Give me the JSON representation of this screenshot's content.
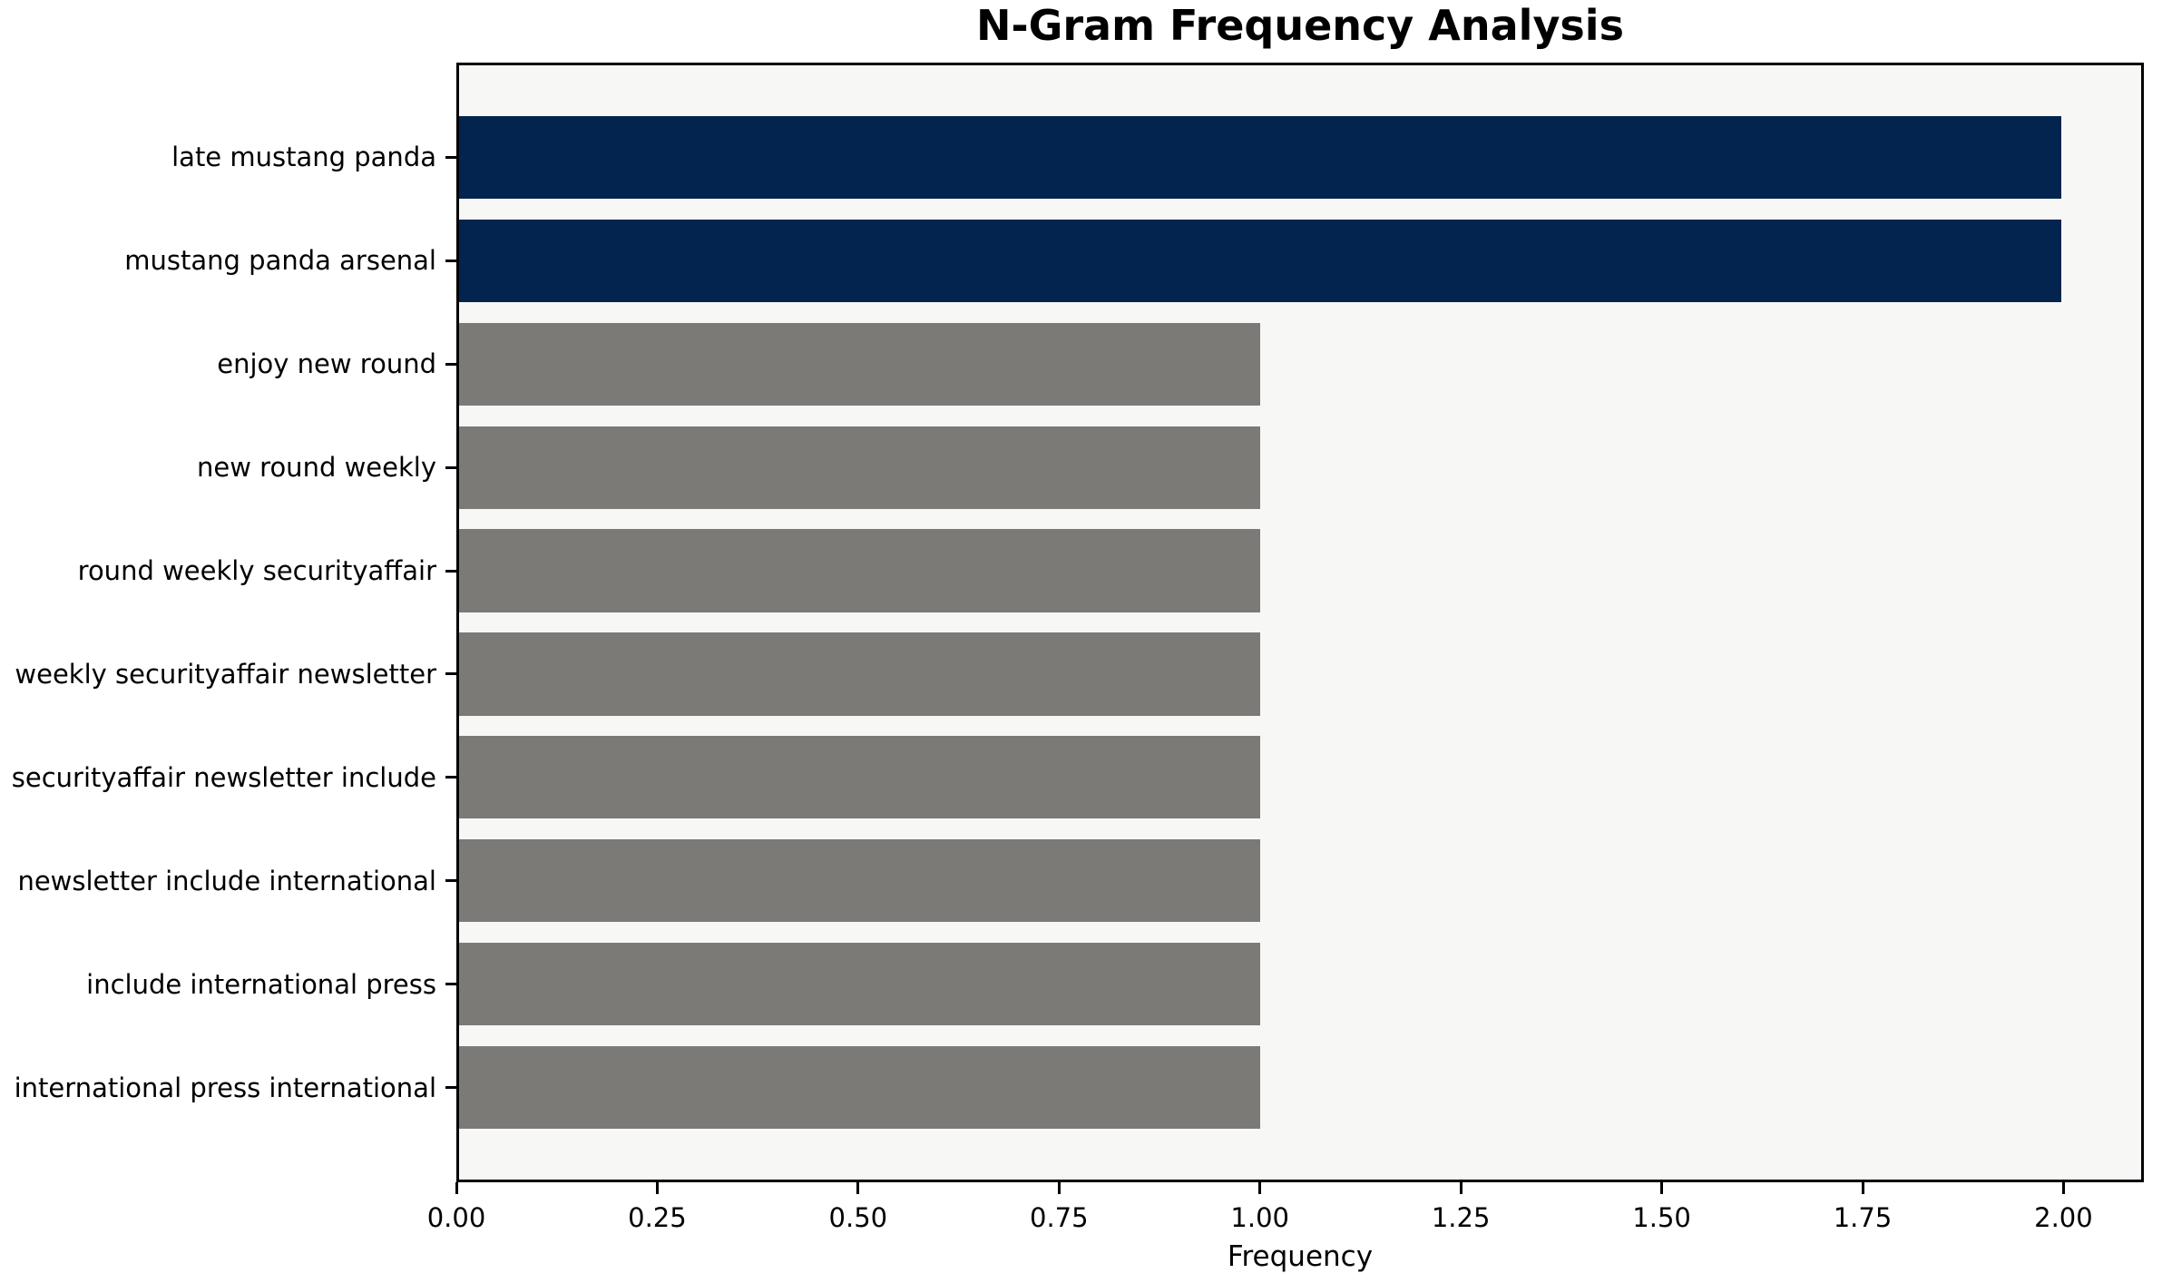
{
  "figure": {
    "background": "#ffffff"
  },
  "chart_data": {
    "type": "bar",
    "orientation": "horizontal",
    "title": "N-Gram Frequency Analysis",
    "xlabel": "Frequency",
    "ylabel": "",
    "categories": [
      "late mustang panda",
      "mustang panda arsenal",
      "enjoy new round",
      "new round weekly",
      "round weekly securityaffair",
      "weekly securityaffair newsletter",
      "securityaffair newsletter include",
      "newsletter include international",
      "include international press",
      "international press international"
    ],
    "values": [
      2,
      2,
      1,
      1,
      1,
      1,
      1,
      1,
      1,
      1
    ],
    "bar_colors": [
      "#02244e",
      "#02244e",
      "#7b7a77",
      "#7b7a77",
      "#7b7a77",
      "#7b7a77",
      "#7b7a77",
      "#7b7a77",
      "#7b7a77",
      "#7b7a77"
    ],
    "highlight_color": "#02244e",
    "base_color": "#7b7a77",
    "xlim": [
      0,
      2.1
    ],
    "xticks": [
      "0.00",
      "0.25",
      "0.50",
      "0.75",
      "1.00",
      "1.25",
      "1.50",
      "1.75",
      "2.00"
    ],
    "grid": "off",
    "legend": "none",
    "plot_bg": "#f7f7f6",
    "spine_color": "#000000",
    "text_color": "#000000"
  }
}
